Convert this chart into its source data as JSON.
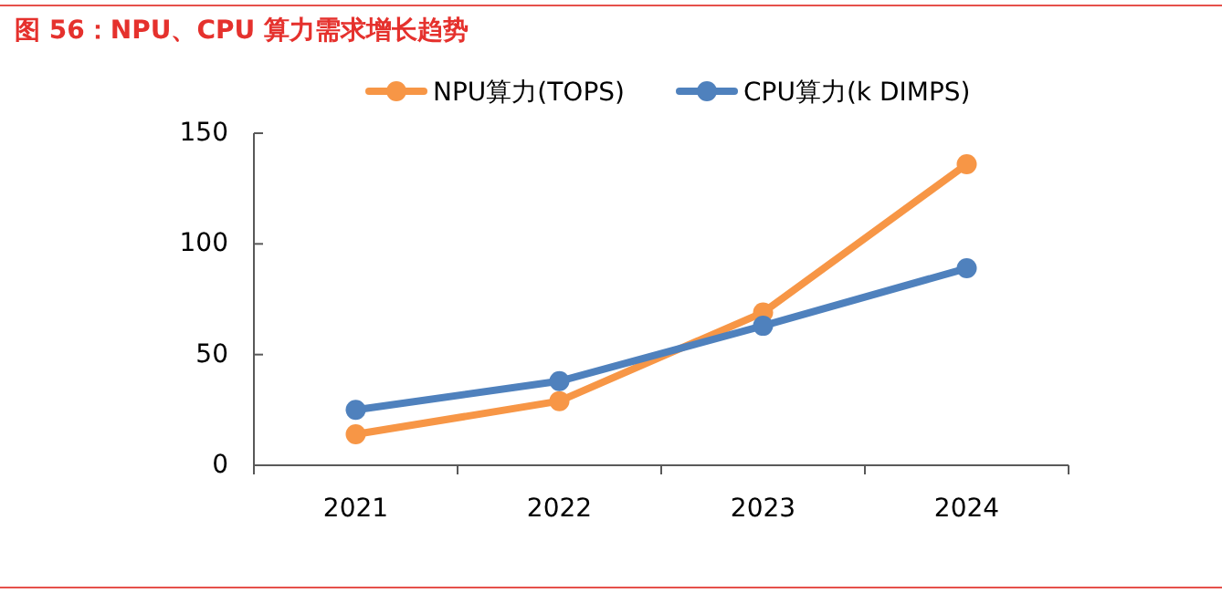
{
  "chart_data": {
    "type": "line",
    "title": "图 56：NPU、CPU 算力需求增长趋势",
    "categories": [
      "2021",
      "2022",
      "2023",
      "2024"
    ],
    "series": [
      {
        "name": "NPU算力(TOPS)",
        "color": "#f79646",
        "values": [
          14,
          29,
          69,
          136
        ]
      },
      {
        "name": "CPU算力(k DIMPS)",
        "color": "#4f81bd",
        "values": [
          25,
          38,
          63,
          89
        ]
      }
    ],
    "ylim": [
      0,
      150
    ],
    "yticks": [
      0,
      50,
      100,
      150
    ],
    "grid": false,
    "legend": "top",
    "marker": "circle",
    "line_style": "solid"
  }
}
